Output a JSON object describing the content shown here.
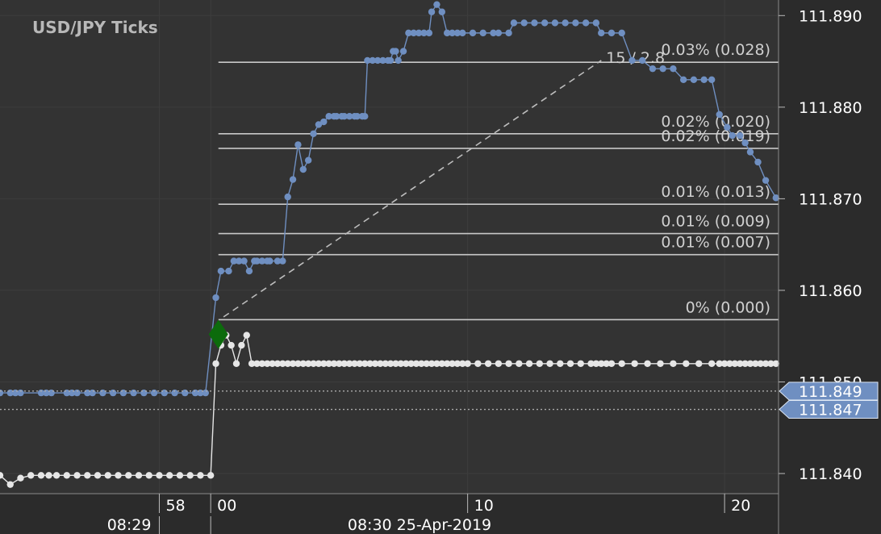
{
  "chart_data": {
    "type": "line",
    "title": "USD/JPY  Ticks",
    "colors": {
      "background": "#333333",
      "axis_background": "#2b2b2b",
      "grid": "#3d3d3d",
      "ask": "#6f8fc1",
      "bid": "#e6e6e6",
      "level_line": "#c8c8c8",
      "fib_label": "#cfcfcf",
      "tick_label": "#ffffff",
      "badge": "#6f8fc1",
      "green_marker": "#0c6b0c"
    },
    "y_axis": {
      "ticks": [
        "111.840",
        "111.850",
        "111.860",
        "111.870",
        "111.880",
        "111.890"
      ],
      "ylim": [
        111.8378,
        111.8917
      ]
    },
    "x_axis": {
      "unit": "seconds after 08:30:00",
      "xlim": [
        -8.2,
        22.1
      ],
      "minor_labels": [
        {
          "t": -2,
          "label": "58"
        },
        {
          "t": 0,
          "label": "00"
        },
        {
          "t": 10,
          "label": "10"
        },
        {
          "t": 20,
          "label": "20"
        }
      ],
      "major_labels": [
        {
          "t": -2,
          "label": "08:29"
        },
        {
          "t": 0,
          "label": "08:30 25-Apr-2019"
        }
      ]
    },
    "price_badges": [
      {
        "label": "111.849",
        "value": 111.849
      },
      {
        "label": "111.847",
        "value": 111.847
      }
    ],
    "fib_levels": [
      {
        "label": "0.03% (0.028)",
        "value": 111.8849
      },
      {
        "label": "0.02% (0.020)",
        "value": 111.8771
      },
      {
        "label": "0.02% (0.019)",
        "value": 111.8755
      },
      {
        "label": "0.01% (0.013)",
        "value": 111.8694
      },
      {
        "label": "0.01% (0.009)",
        "value": 111.8662
      },
      {
        "label": "0.01% (0.007)",
        "value": 111.8639
      },
      {
        "label": "0% (0.000)",
        "value": 111.8568
      }
    ],
    "measure_label": "15 / 2.8",
    "measure_line": {
      "from": [
        0.5,
        111.8571
      ],
      "to": [
        15.2,
        111.8851
      ]
    },
    "series": [
      {
        "role": "ask",
        "x": [
          -8.2,
          -7.8,
          -7.6,
          -7.4,
          -6.6,
          -6.4,
          -6.2,
          -5.6,
          -5.4,
          -5.2,
          -4.8,
          -4.6,
          -4.2,
          -3.8,
          -3.4,
          -3.0,
          -2.6,
          -2.2,
          -1.8,
          -1.4,
          -1.0,
          -0.6,
          -0.4,
          -0.2,
          0.2,
          0.4,
          0.7,
          0.9,
          1.1,
          1.3,
          1.5,
          1.7,
          1.8,
          2.0,
          2.2,
          2.3,
          2.6,
          2.8,
          3.0,
          3.2,
          3.4,
          3.6,
          3.8,
          4.0,
          4.2,
          4.4,
          4.6,
          4.8,
          4.9,
          5.1,
          5.2,
          5.4,
          5.6,
          5.7,
          5.9,
          6.0,
          6.1,
          6.3,
          6.5,
          6.7,
          6.9,
          7.0,
          7.1,
          7.2,
          7.3,
          7.5,
          7.7,
          7.9,
          8.1,
          8.3,
          8.5,
          8.6,
          8.8,
          9.0,
          9.2,
          9.4,
          9.6,
          9.8,
          10.2,
          10.6,
          11.0,
          11.2,
          11.6,
          11.8,
          12.2,
          12.6,
          13.0,
          13.4,
          13.8,
          14.2,
          14.6,
          15.0,
          15.2,
          15.6,
          16.0,
          16.4,
          16.8,
          17.2,
          17.6,
          18.0,
          18.4,
          18.8,
          19.2,
          19.5,
          19.8,
          20.1,
          20.3,
          20.6,
          20.8,
          21.0,
          21.3,
          21.6,
          22.0
        ],
        "values": [
          111.8488,
          111.8488,
          111.8488,
          111.8488,
          111.8488,
          111.8488,
          111.8488,
          111.8488,
          111.8488,
          111.8488,
          111.8488,
          111.8488,
          111.8488,
          111.8488,
          111.8488,
          111.8488,
          111.8488,
          111.8488,
          111.8488,
          111.8488,
          111.8488,
          111.8488,
          111.8488,
          111.8488,
          111.8592,
          111.8621,
          111.8621,
          111.8632,
          111.8632,
          111.8632,
          111.8621,
          111.8632,
          111.8632,
          111.8632,
          111.8632,
          111.8632,
          111.8632,
          111.8632,
          111.8702,
          111.8721,
          111.8759,
          111.8732,
          111.8742,
          111.8771,
          111.8781,
          111.8784,
          111.879,
          111.879,
          111.879,
          111.879,
          111.879,
          111.879,
          111.879,
          111.879,
          111.879,
          111.879,
          111.8851,
          111.8851,
          111.8851,
          111.8851,
          111.8851,
          111.8851,
          111.8861,
          111.8861,
          111.8851,
          111.8861,
          111.8881,
          111.8881,
          111.8881,
          111.8881,
          111.8881,
          111.8904,
          111.8912,
          111.8904,
          111.8881,
          111.8881,
          111.8881,
          111.8881,
          111.8881,
          111.8881,
          111.8881,
          111.8881,
          111.8881,
          111.8892,
          111.8892,
          111.8892,
          111.8892,
          111.8892,
          111.8892,
          111.8892,
          111.8892,
          111.8892,
          111.8881,
          111.8881,
          111.8881,
          111.8851,
          111.8851,
          111.8842,
          111.8842,
          111.8842,
          111.883,
          111.883,
          111.883,
          111.883,
          111.8792,
          111.8778,
          111.8769,
          111.8769,
          111.8761,
          111.8751,
          111.874,
          111.872,
          111.8701
        ]
      },
      {
        "role": "bid",
        "x": [
          -8.2,
          -7.8,
          -7.4,
          -7.0,
          -6.6,
          -6.3,
          -6.0,
          -5.6,
          -5.2,
          -4.8,
          -4.4,
          -4.0,
          -3.6,
          -3.2,
          -2.8,
          -2.4,
          -2.0,
          -1.6,
          -1.2,
          -0.8,
          -0.4,
          0.0,
          0.2,
          0.4,
          0.6,
          0.8,
          1.0,
          1.2,
          1.4,
          1.6,
          1.8,
          2.0,
          2.2,
          2.4,
          2.6,
          2.8,
          3.0,
          3.2,
          3.4,
          3.6,
          3.8,
          4.0,
          4.2,
          4.4,
          4.6,
          4.8,
          5.0,
          5.2,
          5.4,
          5.6,
          5.8,
          6.0,
          6.2,
          6.4,
          6.6,
          6.8,
          7.0,
          7.2,
          7.4,
          7.6,
          7.8,
          8.0,
          8.2,
          8.4,
          8.6,
          8.8,
          9.0,
          9.2,
          9.4,
          9.6,
          9.8,
          10.0,
          10.4,
          10.8,
          11.2,
          11.6,
          12.0,
          12.4,
          12.8,
          13.2,
          13.6,
          14.0,
          14.4,
          14.8,
          15.0,
          15.2,
          15.4,
          15.6,
          16.0,
          16.5,
          17.0,
          17.5,
          18.0,
          18.5,
          19.0,
          19.5,
          19.8,
          20.0,
          20.2,
          20.4,
          20.6,
          20.8,
          21.0,
          21.2,
          21.4,
          21.6,
          21.8,
          22.0
        ],
        "values": [
          111.8398,
          111.8388,
          111.8395,
          111.8398,
          111.8398,
          111.8398,
          111.8398,
          111.8398,
          111.8398,
          111.8398,
          111.8398,
          111.8398,
          111.8398,
          111.8398,
          111.8398,
          111.8398,
          111.8398,
          111.8398,
          111.8398,
          111.8398,
          111.8398,
          111.8398,
          111.852,
          111.854,
          111.8551,
          111.854,
          111.852,
          111.854,
          111.8551,
          111.852,
          111.852,
          111.852,
          111.852,
          111.852,
          111.852,
          111.852,
          111.852,
          111.852,
          111.852,
          111.852,
          111.852,
          111.852,
          111.852,
          111.852,
          111.852,
          111.852,
          111.852,
          111.852,
          111.852,
          111.852,
          111.852,
          111.852,
          111.852,
          111.852,
          111.852,
          111.852,
          111.852,
          111.852,
          111.852,
          111.852,
          111.852,
          111.852,
          111.852,
          111.852,
          111.852,
          111.852,
          111.852,
          111.852,
          111.852,
          111.852,
          111.852,
          111.852,
          111.852,
          111.852,
          111.852,
          111.852,
          111.852,
          111.852,
          111.852,
          111.852,
          111.852,
          111.852,
          111.852,
          111.852,
          111.852,
          111.852,
          111.852,
          111.852,
          111.852,
          111.852,
          111.852,
          111.852,
          111.852,
          111.852,
          111.852,
          111.852,
          111.852,
          111.852,
          111.852,
          111.852,
          111.852,
          111.852,
          111.852,
          111.852,
          111.852,
          111.852,
          111.852,
          111.852
        ]
      }
    ]
  }
}
